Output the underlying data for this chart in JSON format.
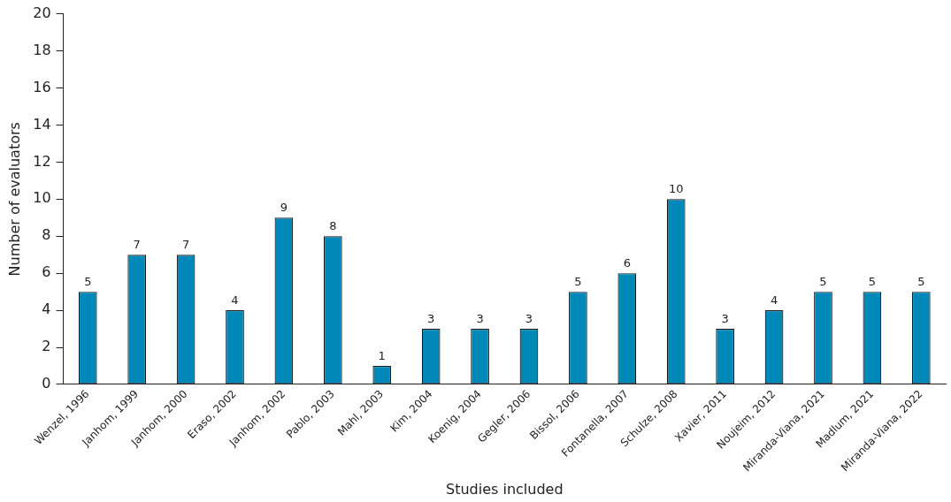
{
  "chart_data": {
    "type": "bar",
    "xlabel": "Studies included",
    "ylabel": "Number of evaluators",
    "categories": [
      "Wenzel, 1996",
      "Janhom, 1999",
      "Janhom, 2000",
      "Eraso, 2002",
      "Janhom, 2002",
      "Pablo, 2003",
      "Mahl, 2003",
      "Kim, 2004",
      "Koenig, 2004",
      "Gegler, 2006",
      "Bissol, 2006",
      "Fontanella, 2007",
      "Schulze, 2008",
      "Xavier, 2011",
      "Noujeim, 2012",
      "Miranda-Viana, 2021",
      "Madlum, 2021",
      "Miranda-Viana, 2022"
    ],
    "values": [
      5,
      7,
      7,
      4,
      9,
      8,
      1,
      3,
      3,
      3,
      5,
      6,
      10,
      3,
      4,
      5,
      5,
      5
    ],
    "color": "#0088b8",
    "ylim": [
      0,
      20
    ],
    "yticks": [
      0,
      2,
      4,
      6,
      8,
      10,
      12,
      14,
      16,
      18,
      20
    ],
    "data_labels": true,
    "grid": false,
    "legend": false
  }
}
